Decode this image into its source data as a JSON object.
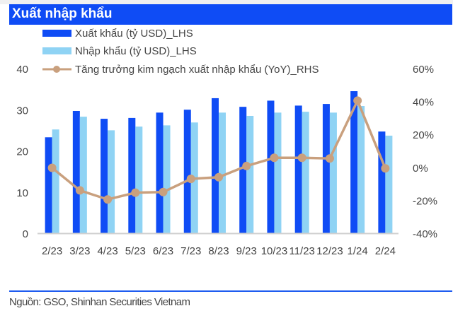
{
  "header": {
    "title": "Xuất nhập khẩu"
  },
  "footer": {
    "source": "Nguồn: GSO, Shinhan Securities Vietnam"
  },
  "colors": {
    "export": "#0f4cf5",
    "import": "#8fd3f4",
    "growth": "#c9a07e",
    "title_bg": "#0f4cf5"
  },
  "chart_data": {
    "type": "bar",
    "title": "Xuất nhập khẩu",
    "categories": [
      "2/23",
      "3/23",
      "4/23",
      "5/23",
      "6/23",
      "7/23",
      "8/23",
      "9/23",
      "10/23",
      "11/23",
      "12/23",
      "1/24",
      "2/24"
    ],
    "series": [
      {
        "name": "Xuất khẩu (tỷ USD)_LHS",
        "type": "bar",
        "axis": "left",
        "values": [
          23.3,
          29.7,
          27.8,
          28.0,
          29.3,
          30.0,
          32.8,
          30.7,
          32.2,
          31.0,
          31.4,
          34.5,
          24.7
        ]
      },
      {
        "name": "Nhập khẩu (tỷ USD)_LHS",
        "type": "bar",
        "axis": "left",
        "values": [
          25.2,
          28.3,
          25.0,
          25.9,
          26.2,
          26.9,
          29.3,
          28.5,
          29.3,
          29.5,
          29.3,
          30.9,
          23.7
        ]
      },
      {
        "name": "Tăng trưởng kim ngạch xuất nhập khẩu (YoY)_RHS",
        "type": "line",
        "axis": "right",
        "unit": "%",
        "values": [
          -0.3,
          -14,
          -19.5,
          -15.4,
          -15,
          -7,
          -6,
          0.8,
          5.8,
          5.8,
          5.4,
          40.5,
          -0.6
        ]
      }
    ],
    "left_axis": {
      "range": [
        0,
        40
      ],
      "ticks": [
        "0",
        "10",
        "20",
        "30",
        "40"
      ]
    },
    "right_axis": {
      "range": [
        -40,
        60
      ],
      "ticks": [
        "-40%",
        "-20%",
        "0%",
        "20%",
        "40%",
        "60%"
      ]
    },
    "grid": false,
    "legend_position": "top"
  }
}
